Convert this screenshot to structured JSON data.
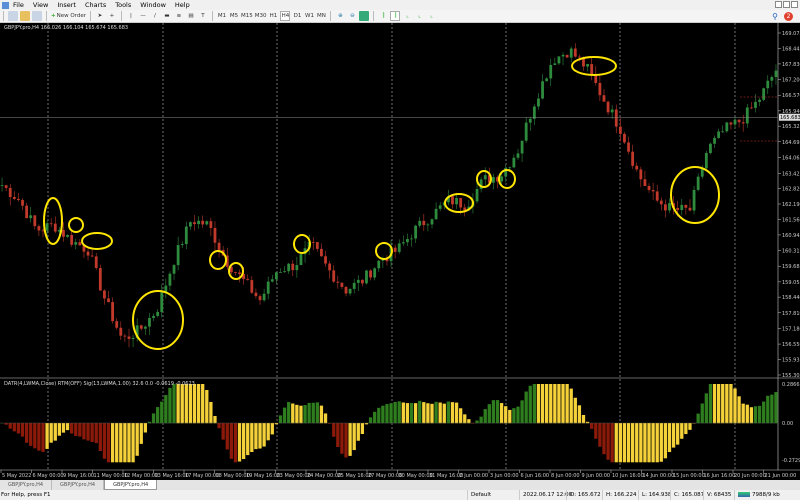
{
  "menu": [
    "File",
    "View",
    "Insert",
    "Charts",
    "Tools",
    "Window",
    "Help"
  ],
  "toolbar": {
    "new_order": "New Order",
    "timeframes": [
      "M1",
      "M5",
      "M15",
      "M30",
      "H1",
      "H4",
      "D1",
      "W1",
      "MN"
    ],
    "active_timeframe": "H4"
  },
  "notifications_count": "2",
  "chart": {
    "header": "GBPJPY.pro,H4  166.026 166.104 165.674 165.683",
    "current_price": "165.683",
    "price_labels": [
      "169.075",
      "168.445",
      "167.830",
      "167.200",
      "166.570",
      "165.940",
      "165.325",
      "164.695",
      "164.065",
      "163.425",
      "162.820",
      "162.190",
      "161.560",
      "160.945",
      "160.315",
      "159.685",
      "159.055",
      "158.440",
      "157.810",
      "157.180",
      "156.550",
      "155.935",
      "155.305"
    ],
    "price_range": [
      155.305,
      169.075
    ],
    "close_path": [
      162.95,
      162.35,
      161.14,
      161.35,
      160.74,
      160.34,
      158.32,
      156.71,
      157.12,
      157.92,
      159.94,
      161.55,
      161.35,
      159.94,
      159.13,
      158.32,
      159.53,
      159.73,
      160.54,
      159.53,
      158.73,
      159.13,
      159.94,
      160.34,
      161.14,
      161.75,
      162.35,
      162.15,
      163.16,
      163.36,
      164.36,
      166.38,
      167.99,
      168.39,
      167.67,
      166.38,
      165.17,
      163.36,
      162.35,
      161.95,
      161.95,
      164.36,
      165.17,
      165.57,
      166.38,
      167.59
    ],
    "time_labels": [
      "5 May 2022",
      "6 May 00:00",
      "9 May 16:00",
      "11 May 00:00",
      "12 May 00:00",
      "13 May 16:00",
      "17 May 00:00",
      "18 May 00:00",
      "19 May 16:00",
      "23 May 00:00",
      "24 May 00:00",
      "25 May 16:00",
      "27 May 00:00",
      "30 May 00:00",
      "31 May 16:00",
      "2 Jun 00:00",
      "3 Jun 00:00",
      "6 Jun 16:00",
      "8 Jun 00:00",
      "9 Jun 00:00",
      "10 Jun 16:00",
      "14 Jun 00:00",
      "15 Jun 00:00",
      "16 Jun 16:00",
      "20 Jun 00:00",
      "21 Jun 00:00"
    ],
    "colors": {
      "bull": "#2e8b3e",
      "bear": "#c0392b",
      "circle": "#ffe600",
      "hist_up": "#2e7d1e",
      "hist_fade": "#f5d23a",
      "hist_down": "#8b1a0a"
    }
  },
  "indicator": {
    "label": "DATR(4,LWMA,Close) RTM(OFF) Sig(13,LWMA,1.00)  32.6  0.0  -0.0619 -0.0623",
    "max_label": "0.2866",
    "zero_label": "0.00",
    "min_label": "-0.2729"
  },
  "tabs": [
    "GBPJPY.pro,H4",
    "GBPJPY.pro,H4",
    "GBPJPY.pro,H4"
  ],
  "status": {
    "help": "For Help, press F1",
    "profile": "Default",
    "datetime": "2022.06.17 12:00",
    "open": "O: 165.672",
    "high": "H: 166.224",
    "low": "L: 164.938",
    "close": "C: 165.087",
    "volume": "V: 68435",
    "traffic": "7988/9 kb"
  }
}
